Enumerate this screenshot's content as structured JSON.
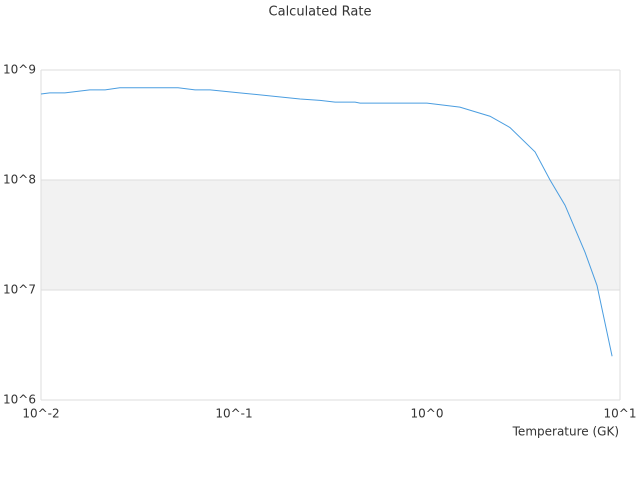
{
  "chart_data": {
    "type": "line",
    "title": "Calculated Rate",
    "x_label": "Temperature (GK)",
    "xscale": "log",
    "yscale": "log",
    "color": "#4a9de0",
    "xlim": [
      0.01,
      10
    ],
    "ylim": [
      1000000,
      1000000000
    ],
    "xticks": [
      {
        "value": 0.01,
        "label": "10^-2"
      },
      {
        "value": 0.1,
        "label": "10^-1"
      },
      {
        "value": 1,
        "label": "10^0"
      },
      {
        "value": 10,
        "label": "10^1"
      }
    ],
    "yticks": [
      {
        "value": 1000000,
        "label": "10^6"
      },
      {
        "value": 10000000,
        "label": "10^7"
      },
      {
        "value": 100000000,
        "label": "10^8"
      },
      {
        "value": 1000000000,
        "label": "10^9"
      }
    ],
    "x": [
      0.01,
      0.0111,
      0.0133,
      0.0179,
      0.0215,
      0.0256,
      0.0513,
      0.0628,
      0.0752,
      0.107,
      0.22,
      0.279,
      0.334,
      0.424,
      0.45,
      1.0,
      1.48,
      2.12,
      2.69,
      3.63,
      4.34,
      5.19,
      6.59,
      7.6,
      9.1
    ],
    "values": [
      605000000,
      620000000,
      620000000,
      660000000,
      660000000,
      690000000,
      690000000,
      660000000,
      660000000,
      620000000,
      545000000,
      530000000,
      510000000,
      510000000,
      500000000,
      500000000,
      460000000,
      380000000,
      300000000,
      180000000,
      100000000,
      59000000,
      22000000,
      11000000,
      2500000
    ]
  }
}
